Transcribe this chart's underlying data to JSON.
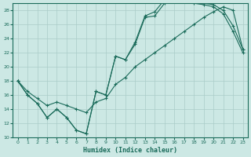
{
  "bg_color": "#cce8e4",
  "grid_color": "#aaccc8",
  "line_color": "#1a6b5a",
  "xlabel": "Humidex (Indice chaleur)",
  "xlim": [
    -0.5,
    23.5
  ],
  "ylim": [
    10,
    29
  ],
  "xticks": [
    0,
    1,
    2,
    3,
    4,
    5,
    6,
    7,
    8,
    9,
    10,
    11,
    12,
    13,
    14,
    15,
    16,
    17,
    18,
    19,
    20,
    21,
    22,
    23
  ],
  "yticks": [
    10,
    12,
    14,
    16,
    18,
    20,
    22,
    24,
    26,
    28
  ],
  "line1_x": [
    0,
    1,
    2,
    3,
    4,
    5,
    6,
    7,
    8,
    9,
    10,
    11,
    12,
    13,
    14,
    15,
    16,
    17,
    18,
    19,
    20,
    21,
    22,
    23
  ],
  "line1_y": [
    18.0,
    16.0,
    14.8,
    12.8,
    14.0,
    12.8,
    11.0,
    10.5,
    16.5,
    16.0,
    21.5,
    21.0,
    23.2,
    27.0,
    27.2,
    29.0,
    29.2,
    29.2,
    29.0,
    28.8,
    28.5,
    27.5,
    25.0,
    22.0
  ],
  "line2_x": [
    0,
    1,
    2,
    3,
    4,
    5,
    6,
    7,
    8,
    9,
    10,
    11,
    12,
    13,
    14,
    15,
    16,
    17,
    18,
    19,
    20,
    21,
    22,
    23
  ],
  "line2_y": [
    18.0,
    16.0,
    14.8,
    12.8,
    14.0,
    12.8,
    11.0,
    10.5,
    16.5,
    16.0,
    21.5,
    21.0,
    23.5,
    27.2,
    27.8,
    29.5,
    29.5,
    29.5,
    29.2,
    29.0,
    28.8,
    28.0,
    25.8,
    22.5
  ],
  "line3_x": [
    0,
    1,
    2,
    3,
    4,
    5,
    6,
    7,
    8,
    9,
    10,
    11,
    12,
    13,
    14,
    15,
    16,
    17,
    18,
    19,
    20,
    21,
    22,
    23
  ],
  "line3_y": [
    18.0,
    16.5,
    15.5,
    14.5,
    15.0,
    14.5,
    14.0,
    13.5,
    15.0,
    15.5,
    17.5,
    18.5,
    20.0,
    21.0,
    22.0,
    23.0,
    24.0,
    25.0,
    26.0,
    27.0,
    27.8,
    28.5,
    28.0,
    22.5
  ]
}
